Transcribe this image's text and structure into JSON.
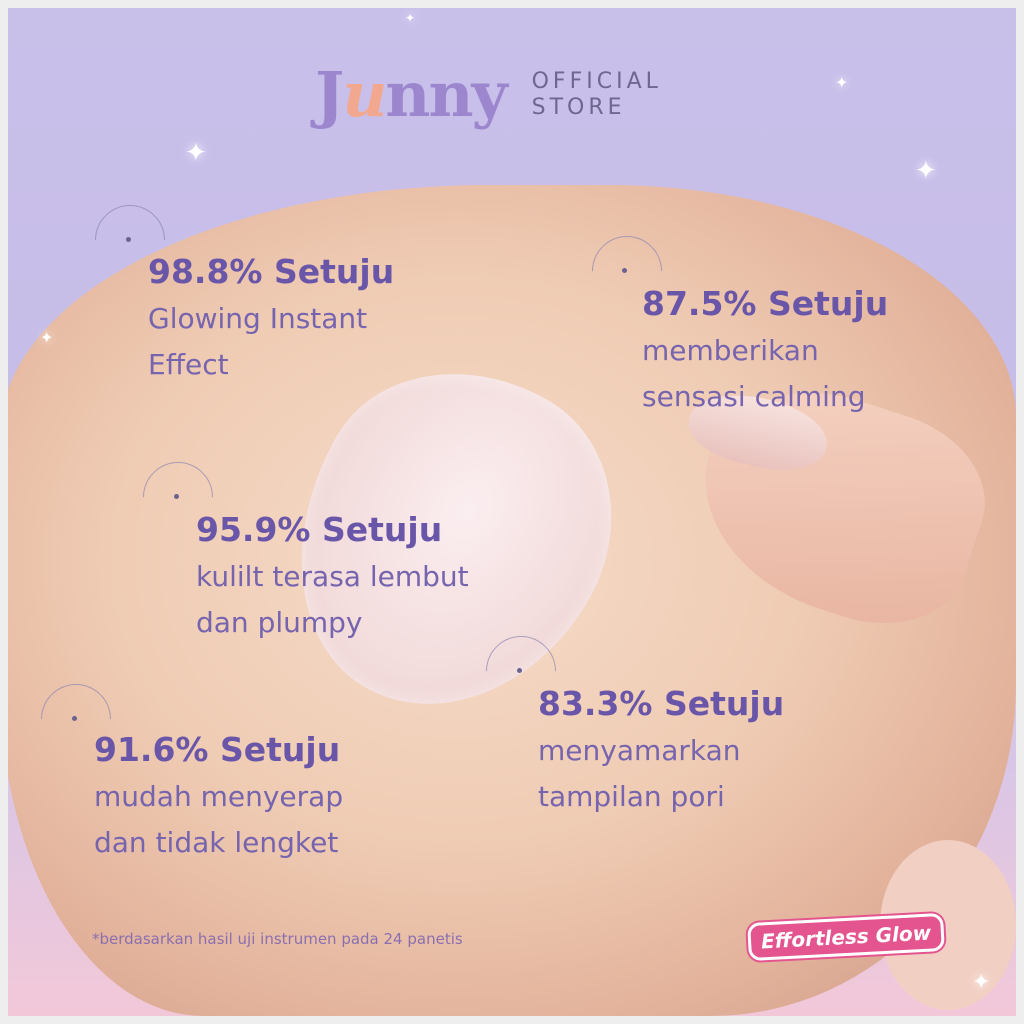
{
  "brand": {
    "logo_text": "Junny",
    "store_label_line1": "OFFICIAL",
    "store_label_line2": "STORE"
  },
  "stats": [
    {
      "percent": "98.8% Setuju",
      "line1": "Glowing Instant",
      "line2": "Effect"
    },
    {
      "percent": "87.5% Setuju",
      "line1": "memberikan",
      "line2": "sensasi calming"
    },
    {
      "percent": "95.9% Setuju",
      "line1": "kulilt terasa lembut",
      "line2": "dan plumpy"
    },
    {
      "percent": "83.3% Setuju",
      "line1": "menyamarkan",
      "line2": "tampilan pori"
    },
    {
      "percent": "91.6% Setuju",
      "line1": "mudah menyerap",
      "line2": "dan tidak lengket"
    }
  ],
  "footnote": "*berdasarkan hasil uji instrumen pada 24 panetis",
  "badge": "Effortless Glow",
  "colors": {
    "heading": "#6a56a8",
    "body": "#7664ae",
    "background": "#c9c0ea",
    "badge": "#e4558f",
    "logo_accent": "#f2a88f"
  }
}
